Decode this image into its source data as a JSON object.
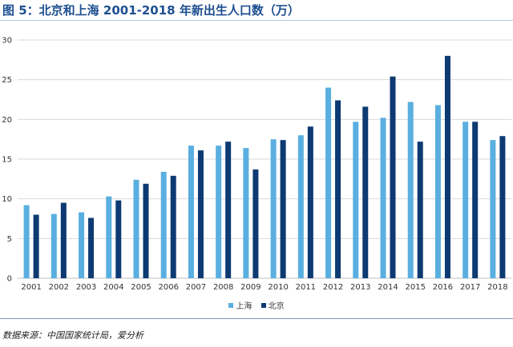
{
  "title": "图 5：北京和上海 2001-2018 年新出生人口数（万）",
  "source": "数据来源：中国国家统计局，爱分析",
  "colors": {
    "shanghai": "#5aafe0",
    "beijing": "#0d3a72",
    "grid": "#d9d9d9",
    "axis": "#bfbfbf"
  },
  "chart_data": {
    "type": "bar",
    "categories": [
      "2001",
      "2002",
      "2003",
      "2004",
      "2005",
      "2006",
      "2007",
      "2008",
      "2009",
      "2010",
      "2011",
      "2012",
      "2013",
      "2014",
      "2015",
      "2016",
      "2017",
      "2018"
    ],
    "series": [
      {
        "name": "上海",
        "values": [
          9.2,
          8.1,
          8.3,
          10.3,
          12.4,
          13.4,
          16.7,
          16.7,
          16.4,
          17.5,
          18.0,
          24.0,
          19.7,
          20.2,
          22.2,
          21.8,
          19.7,
          17.4
        ]
      },
      {
        "name": "北京",
        "values": [
          8.0,
          9.5,
          7.6,
          9.8,
          11.9,
          12.9,
          16.1,
          17.2,
          13.7,
          17.4,
          19.1,
          22.4,
          21.6,
          25.4,
          17.2,
          28.0,
          19.7,
          17.9
        ]
      }
    ],
    "ylim": [
      0,
      30
    ],
    "yticks": [
      0,
      5,
      10,
      15,
      20,
      25,
      30
    ],
    "grid": true,
    "legend_position": "bottom-center"
  }
}
